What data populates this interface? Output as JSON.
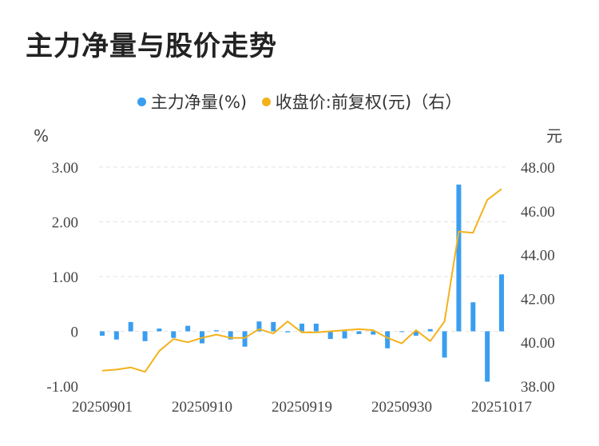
{
  "title": "主力净量与股价走势",
  "legend": [
    {
      "name": "主力净量(%)",
      "color": "#3a9ef0"
    },
    {
      "name": "收盘价:前复权(元)（右）",
      "color": "#f3b21c"
    }
  ],
  "chart_data": {
    "type": "bar+line",
    "left_unit": "%",
    "right_unit": "元",
    "left_ticks": [
      "3.00",
      "2.00",
      "1.00",
      "0",
      "-1.00"
    ],
    "right_ticks": [
      "48.00",
      "46.00",
      "44.00",
      "42.00",
      "40.00",
      "38.00"
    ],
    "ylim_left": [
      -1,
      3
    ],
    "ylim_right": [
      38,
      48
    ],
    "x_tick_labels": [
      "20250901",
      "20250910",
      "20250919",
      "20250930",
      "20251017"
    ],
    "x_tick_index": [
      0,
      7,
      14,
      21,
      28
    ],
    "bar_color": "#3a9ef0",
    "line_color": "#f3b21c",
    "series": [
      {
        "name": "主力净量(%)",
        "type": "bar",
        "values": [
          -0.08,
          -0.15,
          0.17,
          -0.18,
          0.05,
          -0.12,
          0.1,
          -0.22,
          0.02,
          -0.15,
          -0.28,
          0.18,
          0.17,
          -0.02,
          0.14,
          0.14,
          -0.14,
          -0.13,
          -0.05,
          -0.06,
          -0.31,
          0.0,
          -0.08,
          0.04,
          -0.48,
          2.68,
          0.53,
          -0.92,
          1.04
        ]
      },
      {
        "name": "收盘价:前复权(元)（右）",
        "type": "line",
        "values": [
          38.7,
          38.75,
          38.85,
          38.65,
          39.6,
          40.15,
          40.0,
          40.2,
          40.35,
          40.2,
          40.2,
          40.6,
          40.4,
          40.95,
          40.45,
          40.45,
          40.5,
          40.55,
          40.6,
          40.55,
          40.2,
          39.95,
          40.55,
          40.05,
          40.95,
          45.05,
          45.0,
          46.5,
          47.0
        ]
      }
    ]
  }
}
